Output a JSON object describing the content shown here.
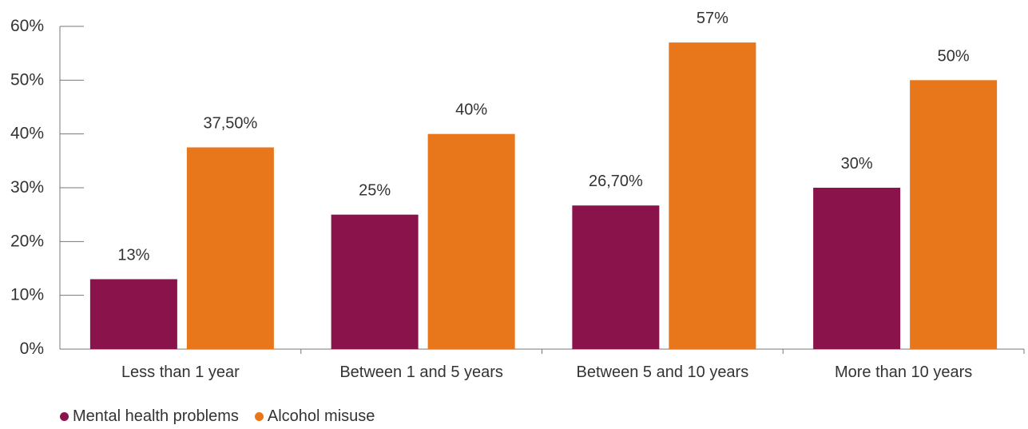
{
  "chart_data": {
    "type": "bar",
    "categories": [
      "Less than 1 year",
      "Between 1 and 5 years",
      "Between 5 and 10 years",
      "More than 10 years"
    ],
    "series": [
      {
        "name": "Mental health problems",
        "color": "#8b134b",
        "values": [
          13,
          25,
          26.7,
          30
        ],
        "labels": [
          "13%",
          "25%",
          "26,70%",
          "30%"
        ]
      },
      {
        "name": "Alcohol misuse",
        "color": "#e8761b",
        "values": [
          37.5,
          40,
          57,
          50
        ],
        "labels": [
          "37,50%",
          "40%",
          "57%",
          "50%"
        ]
      }
    ],
    "yticks": [
      "0%",
      "10%",
      "20%",
      "30%",
      "40%",
      "50%",
      "60%"
    ],
    "ylim": [
      0,
      60
    ],
    "grid": false,
    "legend_position": "bottom-left"
  }
}
